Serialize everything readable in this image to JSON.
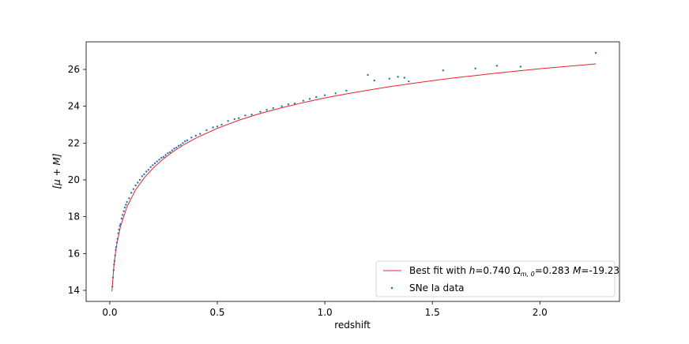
{
  "chart_data": {
    "type": "scatter",
    "xlabel": "redshift",
    "ylabel": "[μ + M]",
    "xlim": [
      -0.11,
      2.37
    ],
    "ylim": [
      13.4,
      27.5
    ],
    "xticks": [
      0.0,
      0.5,
      1.0,
      1.5,
      2.0
    ],
    "xtick_labels": [
      "0.0",
      "0.5",
      "1.0",
      "1.5",
      "2.0"
    ],
    "yticks": [
      14,
      16,
      18,
      20,
      22,
      24,
      26
    ],
    "ytick_labels": [
      "14",
      "16",
      "18",
      "20",
      "22",
      "24",
      "26"
    ],
    "grid": false,
    "legend_position": "lower-right",
    "colors": {
      "fit": "#e8212f",
      "data": "#1f77b4"
    },
    "series": [
      {
        "name": "Best fit with h=0.740 Ωm,0=0.283 M=-19.23",
        "kind": "line",
        "params": {
          "h": "0.740",
          "omega_m0": "0.283",
          "M": "-19.23"
        },
        "x": [
          0.01,
          0.02,
          0.03,
          0.05,
          0.08,
          0.12,
          0.16,
          0.2,
          0.25,
          0.3,
          0.35,
          0.4,
          0.5,
          0.6,
          0.7,
          0.8,
          0.9,
          1.0,
          1.1,
          1.2,
          1.3,
          1.4,
          1.5,
          1.6,
          1.7,
          1.8,
          1.9,
          2.0,
          2.1,
          2.2,
          2.26
        ],
        "y": [
          13.94,
          15.45,
          16.35,
          17.48,
          18.54,
          19.46,
          20.11,
          20.62,
          21.15,
          21.58,
          21.95,
          22.27,
          22.8,
          23.24,
          23.61,
          23.92,
          24.2,
          24.45,
          24.67,
          24.87,
          25.06,
          25.23,
          25.39,
          25.54,
          25.67,
          25.8,
          25.92,
          26.04,
          26.14,
          26.24,
          26.3
        ]
      },
      {
        "name": "SNe Ia data",
        "kind": "scatter",
        "x": [
          0.012,
          0.015,
          0.018,
          0.02,
          0.022,
          0.025,
          0.028,
          0.03,
          0.033,
          0.036,
          0.04,
          0.043,
          0.047,
          0.05,
          0.055,
          0.06,
          0.065,
          0.07,
          0.075,
          0.08,
          0.09,
          0.1,
          0.11,
          0.12,
          0.13,
          0.14,
          0.15,
          0.16,
          0.17,
          0.18,
          0.19,
          0.2,
          0.21,
          0.22,
          0.23,
          0.24,
          0.25,
          0.26,
          0.27,
          0.28,
          0.29,
          0.3,
          0.31,
          0.32,
          0.33,
          0.34,
          0.35,
          0.36,
          0.38,
          0.4,
          0.42,
          0.45,
          0.48,
          0.5,
          0.52,
          0.55,
          0.58,
          0.6,
          0.63,
          0.66,
          0.7,
          0.73,
          0.76,
          0.8,
          0.83,
          0.86,
          0.9,
          0.93,
          0.96,
          1.0,
          1.05,
          1.1,
          1.2,
          1.23,
          1.3,
          1.34,
          1.37,
          1.39,
          1.55,
          1.7,
          1.8,
          1.91,
          2.26
        ],
        "y": [
          14.2,
          14.7,
          15.1,
          15.4,
          15.6,
          15.9,
          16.2,
          16.35,
          16.6,
          16.8,
          17.1,
          17.3,
          17.5,
          17.6,
          17.9,
          18.1,
          18.3,
          18.5,
          18.65,
          18.8,
          19.0,
          19.3,
          19.5,
          19.7,
          19.85,
          20.0,
          20.2,
          20.3,
          20.45,
          20.55,
          20.7,
          20.8,
          20.9,
          21.0,
          21.1,
          21.2,
          21.25,
          21.35,
          21.45,
          21.5,
          21.6,
          21.7,
          21.75,
          21.85,
          21.9,
          22.0,
          22.1,
          22.15,
          22.3,
          22.4,
          22.5,
          22.7,
          22.85,
          22.9,
          23.0,
          23.2,
          23.3,
          23.35,
          23.5,
          23.55,
          23.7,
          23.8,
          23.9,
          24.0,
          24.1,
          24.15,
          24.3,
          24.4,
          24.5,
          24.6,
          24.7,
          24.85,
          25.7,
          25.4,
          25.5,
          25.6,
          25.55,
          25.35,
          25.95,
          26.05,
          26.2,
          26.15,
          26.9
        ]
      }
    ],
    "legend": {
      "fit": {
        "prefix": "Best fit with ",
        "h_symbol": "h",
        "h_value": "=0.740 ",
        "omega_symbol": "Ω",
        "omega_sub": "m, 0",
        "omega_value": "=0.283 ",
        "M_symbol": "M",
        "M_value": "=-19.23"
      },
      "data": "SNe Ia data"
    }
  }
}
